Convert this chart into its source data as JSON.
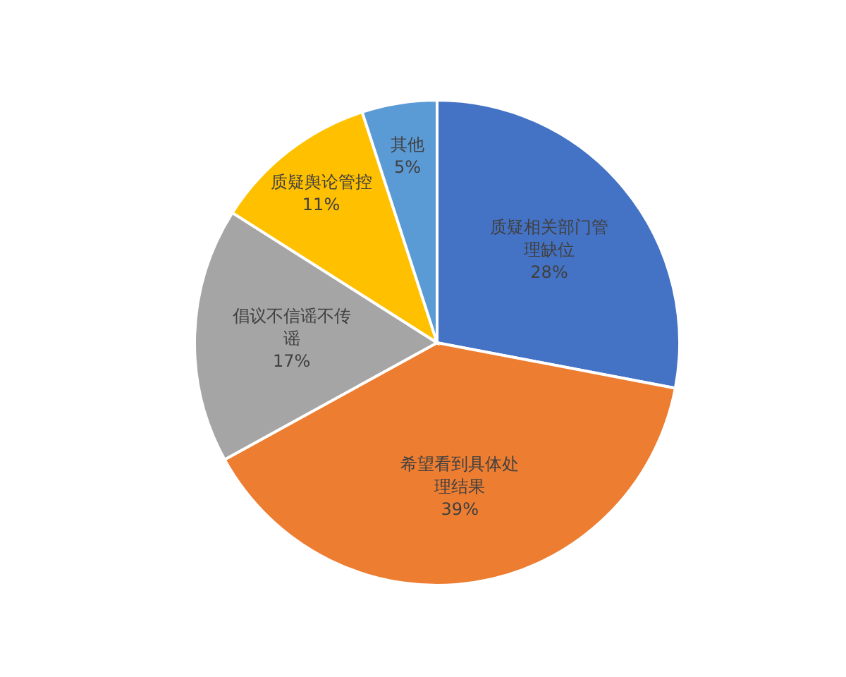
{
  "chart_data": {
    "type": "pie",
    "categories": [
      "质疑相关部门管理缺位",
      "希望看到具体处理结果",
      "倡议不信谣不传谣",
      "质疑舆论管控",
      "其他"
    ],
    "values": [
      28,
      39,
      17,
      11,
      5
    ],
    "colors": [
      "#4472c4",
      "#ed7d31",
      "#a5a5a5",
      "#ffc000",
      "#5b9bd5"
    ],
    "value_labels": [
      "28%",
      "39%",
      "17%",
      "11%",
      "5%"
    ],
    "legend": false
  }
}
